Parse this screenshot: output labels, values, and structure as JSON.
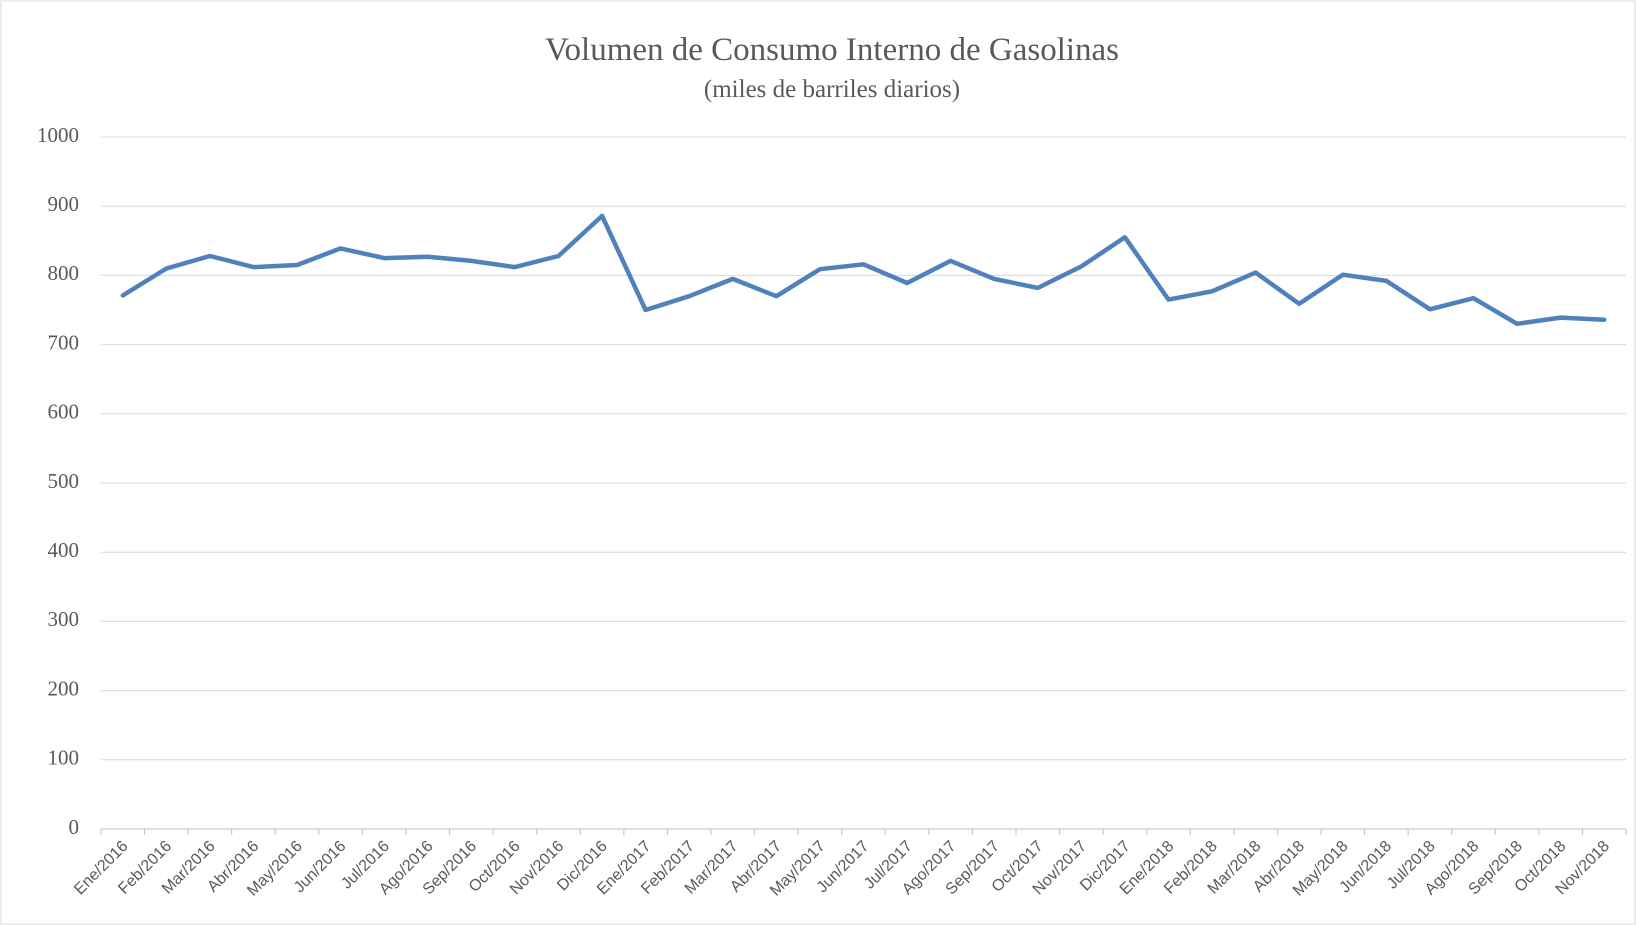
{
  "chart_data": {
    "type": "line",
    "title": "Volumen de Consumo Interno de Gasolinas",
    "subtitle": "(miles de barriles diarios)",
    "categories": [
      "Ene/2016",
      "Feb/2016",
      "Mar/2016",
      "Abr/2016",
      "May/2016",
      "Jun/2016",
      "Jul/2016",
      "Ago/2016",
      "Sep/2016",
      "Oct/2016",
      "Nov/2016",
      "Dic/2016",
      "Ene/2017",
      "Feb/2017",
      "Mar/2017",
      "Abr/2017",
      "May/2017",
      "Jun/2017",
      "Jul/2017",
      "Ago/2017",
      "Sep/2017",
      "Oct/2017",
      "Nov/2017",
      "Dic/2017",
      "Ene/2018",
      "Feb/2018",
      "Mar/2018",
      "Abr/2018",
      "May/2018",
      "Jun/2018",
      "Jul/2018",
      "Ago/2018",
      "Sep/2018",
      "Oct/2018",
      "Nov/2018"
    ],
    "values": [
      771,
      810,
      828,
      812,
      815,
      839,
      825,
      827,
      821,
      812,
      828,
      886,
      750,
      770,
      795,
      770,
      809,
      816,
      789,
      821,
      795,
      782,
      813,
      855,
      765,
      777,
      804,
      759,
      801,
      792,
      751,
      767,
      730,
      739,
      736
    ],
    "color": "#4f81bd",
    "ylim": [
      0,
      1000
    ],
    "yticks": [
      0,
      100,
      200,
      300,
      400,
      500,
      600,
      700,
      800,
      900,
      1000
    ],
    "grid": true
  }
}
